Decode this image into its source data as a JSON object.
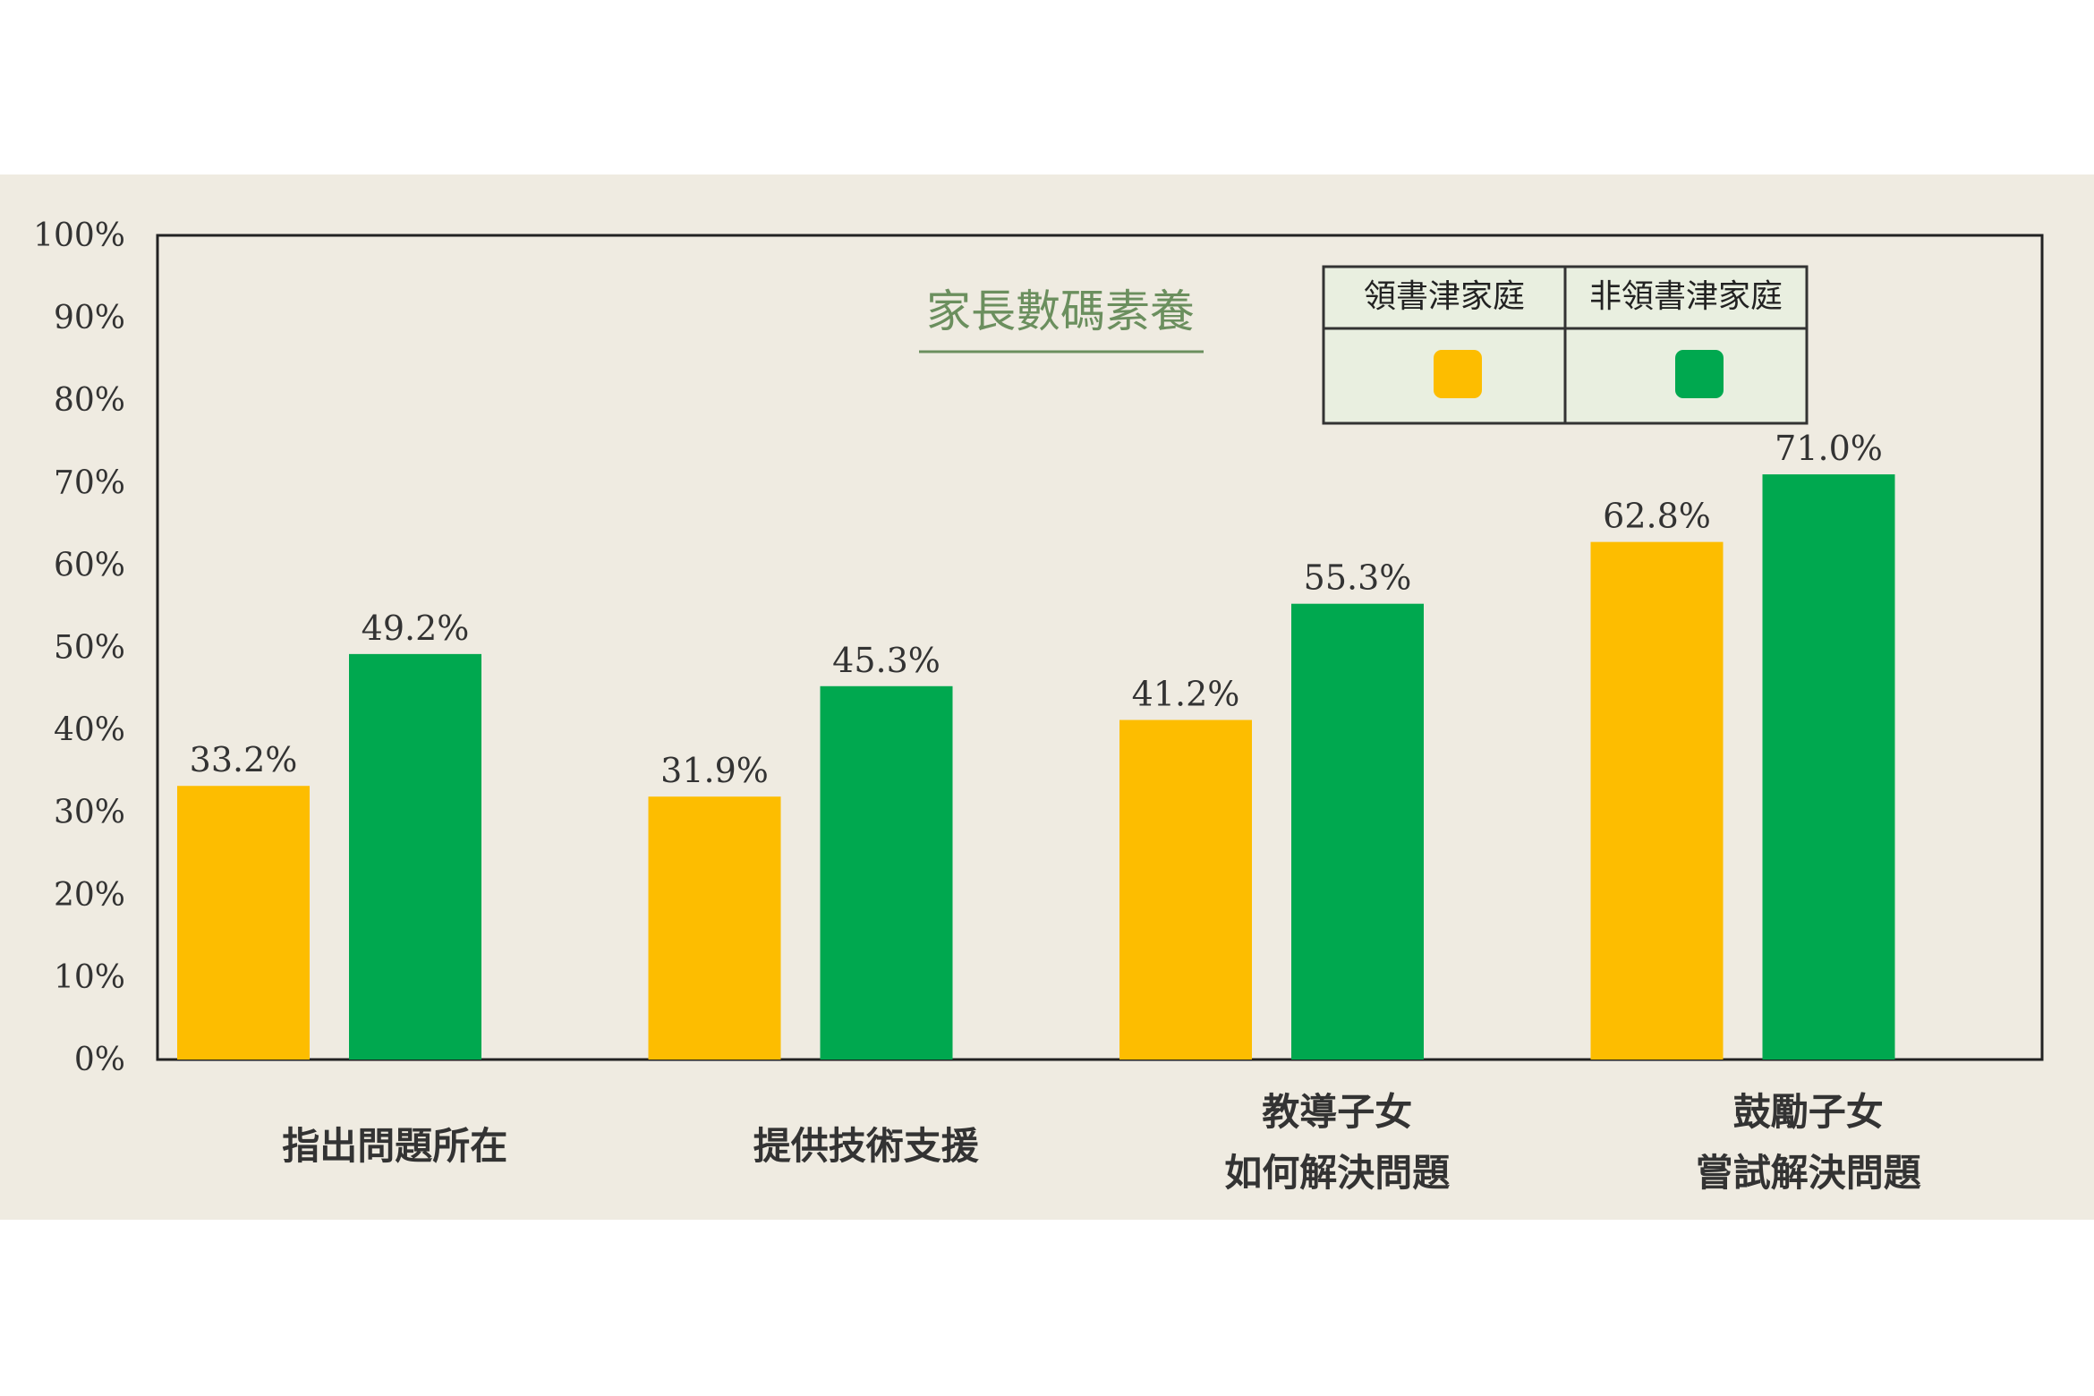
{
  "chart_data": {
    "type": "bar",
    "title": "家長數碼素養",
    "categories": [
      [
        "指出問題所在"
      ],
      [
        "提供技術支援"
      ],
      [
        "教導子女",
        "如何解決問題"
      ],
      [
        "鼓勵子女",
        "嘗試解決問題"
      ]
    ],
    "series": [
      {
        "name": "領書津家庭",
        "color": "#fdbd00",
        "values": [
          33.2,
          31.9,
          41.2,
          62.8
        ]
      },
      {
        "name": "非領書津家庭",
        "color": "#00a84f",
        "values": [
          49.2,
          45.3,
          55.3,
          71.0
        ]
      }
    ],
    "value_labels": [
      [
        "33.2%",
        "31.9%",
        "41.2%",
        "62.8%"
      ],
      [
        "49.2%",
        "45.3%",
        "55.3%",
        "71.0%"
      ]
    ],
    "y_ticks": [
      "0%",
      "10%",
      "20%",
      "30%",
      "40%",
      "50%",
      "60%",
      "70%",
      "80%",
      "90%",
      "100%"
    ],
    "ylim": [
      0,
      100
    ],
    "grid": false,
    "legend_position": "top-right"
  }
}
